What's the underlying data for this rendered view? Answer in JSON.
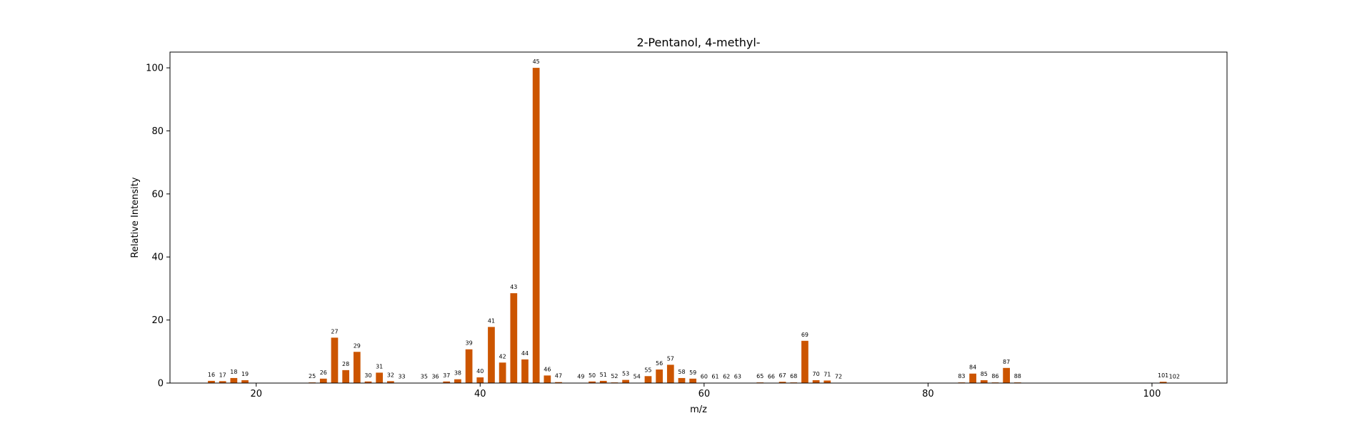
{
  "chart_data": {
    "type": "bar",
    "title": "2-Pentanol, 4-methyl-",
    "xlabel": "m/z",
    "ylabel": "Relative Intensity",
    "xlim": [
      12.3,
      106.7
    ],
    "ylim": [
      0,
      105
    ],
    "xticks": [
      20,
      40,
      60,
      80,
      100
    ],
    "yticks": [
      0,
      20,
      40,
      60,
      80,
      100
    ],
    "grid": false,
    "bar_color": "#cc5500",
    "series": [
      {
        "x": [
          16,
          17,
          18,
          19,
          25,
          26,
          27,
          28,
          29,
          30,
          31,
          32,
          33,
          35,
          36,
          37,
          38,
          39,
          40,
          41,
          42,
          43,
          44,
          45,
          46,
          47,
          49,
          50,
          51,
          52,
          53,
          54,
          55,
          56,
          57,
          58,
          59,
          60,
          61,
          62,
          63,
          65,
          66,
          67,
          68,
          69,
          70,
          71,
          72,
          83,
          84,
          85,
          86,
          87,
          88,
          101,
          102
        ],
        "values": [
          0.7,
          0.6,
          1.6,
          0.9,
          0.2,
          1.4,
          14.4,
          4.1,
          9.9,
          0.5,
          3.3,
          0.6,
          0.1,
          0.1,
          0.1,
          0.5,
          1.2,
          10.7,
          1.8,
          17.8,
          6.5,
          28.5,
          7.5,
          100,
          2.4,
          0.3,
          0.1,
          0.5,
          0.7,
          0.2,
          1.0,
          0.1,
          2.2,
          4.3,
          5.8,
          1.6,
          1.4,
          0.1,
          0.1,
          0.1,
          0.1,
          0.2,
          0.1,
          0.4,
          0.2,
          13.4,
          0.9,
          0.8,
          0.1,
          0.2,
          3.0,
          0.9,
          0.2,
          4.8,
          0.2,
          0.4,
          0.1
        ]
      }
    ]
  }
}
